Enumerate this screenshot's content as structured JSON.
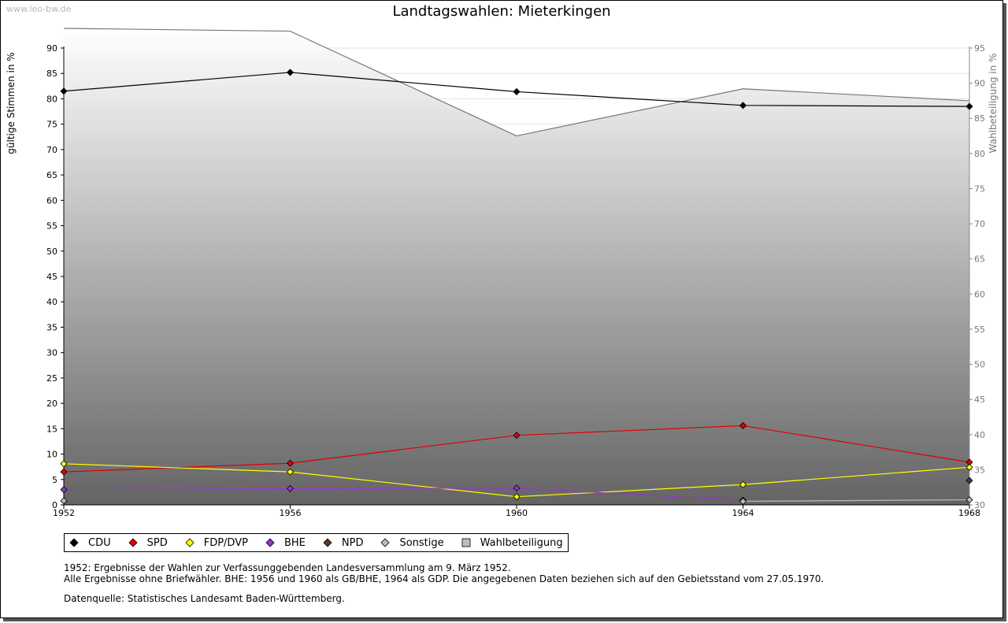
{
  "watermark": "www.leo-bw.de",
  "chart_data": {
    "type": "line",
    "title": "Landtagswahlen: Mieterkingen",
    "ylabel": "gültige Stimmen in %",
    "y2label": "Wahlbeteiligung in %",
    "x": [
      "1952",
      "1956",
      "1960",
      "1964",
      "1968"
    ],
    "ylim": [
      0,
      90
    ],
    "y2lim": [
      30,
      95
    ],
    "yticks": [
      0,
      5,
      10,
      15,
      20,
      25,
      30,
      35,
      40,
      45,
      50,
      55,
      60,
      65,
      70,
      75,
      80,
      85,
      90
    ],
    "y2ticks": [
      30,
      35,
      40,
      45,
      50,
      55,
      60,
      65,
      70,
      75,
      80,
      85,
      90,
      95
    ],
    "grid": true,
    "legend_position": "bottom",
    "series": [
      {
        "name": "CDU",
        "color": "#000000",
        "values": [
          81.5,
          85.2,
          81.4,
          78.7,
          78.5
        ]
      },
      {
        "name": "SPD",
        "color": "#e00000",
        "values": [
          6.5,
          8.2,
          13.7,
          15.6,
          8.4
        ]
      },
      {
        "name": "FDP/DVP",
        "color": "#ffff00",
        "values": [
          8.1,
          6.5,
          1.6,
          4.0,
          7.4
        ]
      },
      {
        "name": "BHE",
        "color": "#9933cc",
        "values": [
          3.0,
          3.2,
          3.3,
          0.9,
          null
        ]
      },
      {
        "name": "NPD",
        "color": "#5a3a28",
        "values": [
          null,
          null,
          null,
          null,
          4.8
        ]
      },
      {
        "name": "Sonstige",
        "color": "#bbbbbb",
        "values": [
          0.8,
          null,
          null,
          0.7,
          1.0
        ]
      }
    ],
    "turnout": {
      "name": "Wahlbeteiligung",
      "axis": "right",
      "color": "#888888",
      "values": [
        97.8,
        97.4,
        82.5,
        89.2,
        87.5
      ]
    }
  },
  "notes": [
    "1952: Ergebnisse der Wahlen zur Verfassunggebenden Landesversammlung am 9. März 1952.",
    "Alle Ergebnisse ohne Briefwähler. BHE: 1956 und 1960 als GB/BHE, 1964 als GDP. Die angegebenen Daten beziehen sich auf den Gebietsstand vom 27.05.1970."
  ],
  "source": "Datenquelle: Statistisches Landesamt Baden-Württemberg."
}
